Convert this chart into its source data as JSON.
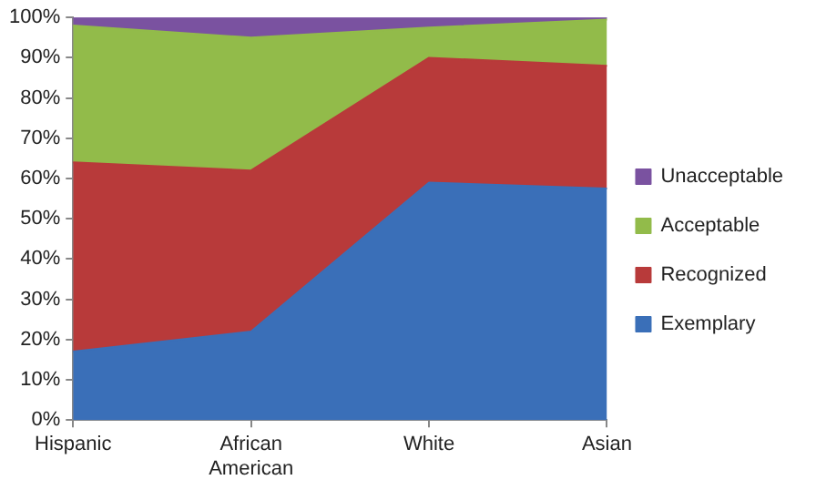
{
  "chart_data": {
    "type": "area",
    "stacked": true,
    "categories": [
      "Hispanic",
      "African American",
      "White",
      "Asian"
    ],
    "series": [
      {
        "name": "Exemplary",
        "color": "#3a6fb8",
        "values": [
          17,
          22,
          59,
          57.5
        ]
      },
      {
        "name": "Recognized",
        "color": "#b83a3a",
        "values": [
          47,
          40,
          31,
          30.5
        ]
      },
      {
        "name": "Acceptable",
        "color": "#92bb4a",
        "values": [
          34,
          33,
          7.5,
          11.5
        ]
      },
      {
        "name": "Unacceptable",
        "color": "#7a52a0",
        "values": [
          2,
          5,
          2.5,
          0.5
        ]
      }
    ],
    "ylim": [
      0,
      100
    ],
    "yticks": [
      {
        "value": 0,
        "label": "0%"
      },
      {
        "value": 10,
        "label": "10%"
      },
      {
        "value": 20,
        "label": "20%"
      },
      {
        "value": 30,
        "label": "30%"
      },
      {
        "value": 40,
        "label": "40%"
      },
      {
        "value": 50,
        "label": "50%"
      },
      {
        "value": 60,
        "label": "60%"
      },
      {
        "value": 70,
        "label": "70%"
      },
      {
        "value": 80,
        "label": "80%"
      },
      {
        "value": 90,
        "label": "90%"
      },
      {
        "value": 100,
        "label": "100%"
      }
    ],
    "grid": false,
    "legend": "right"
  }
}
